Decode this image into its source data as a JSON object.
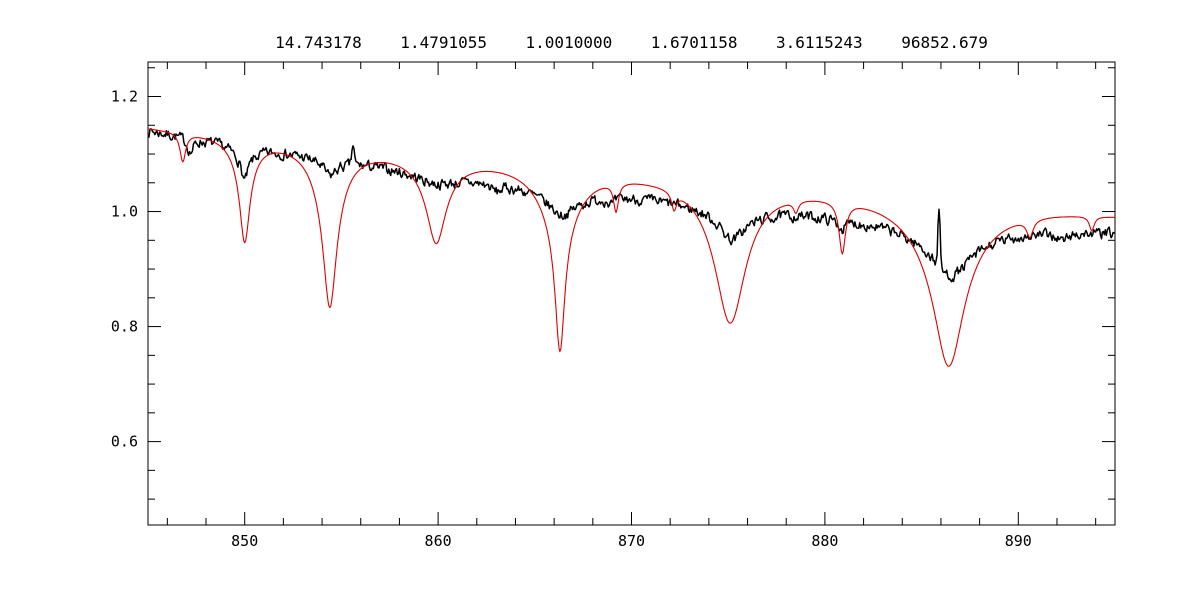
{
  "chart_data": {
    "type": "line",
    "title": "14.743178    1.4791055    1.0010000    1.6701158    3.6115243    96852.679",
    "title_values": [
      "14.743178",
      "1.4791055",
      "1.0010000",
      "1.6701158",
      "3.6115243",
      "96852.679"
    ],
    "xlabel": "",
    "ylabel": "",
    "xlim": [
      845,
      895
    ],
    "ylim": [
      0.455,
      1.26
    ],
    "x_ticks": [
      850,
      860,
      870,
      880,
      890
    ],
    "x_tick_labels": [
      "850",
      "860",
      "870",
      "880",
      "890"
    ],
    "x_minor_step": 2,
    "y_ticks": [
      0.6,
      0.8,
      1.0,
      1.2
    ],
    "y_tick_labels": [
      "0.6",
      "0.8",
      "1.0",
      "1.2"
    ],
    "y_minor_step": 0.05,
    "grid": false,
    "legend": null,
    "background": "#ffffff",
    "axis_color": "#000000",
    "sample_step": 0.05,
    "absorption_line_centers": [
      850.0,
      854.4,
      859.9,
      866.3,
      875.1,
      886.4
    ],
    "series": [
      {
        "name": "observed-spectrum",
        "color": "#000000",
        "width": 1.5,
        "seed": 7,
        "noise_amp": 0.008,
        "continuum": {
          "start_x": 845,
          "start_y": 1.142,
          "slope": -0.0052,
          "quad": 3.4e-05
        },
        "lines": [
          {
            "c": 847.2,
            "d": 0.025,
            "cw": 0.2,
            "ww": 0,
            "wf": 0
          },
          {
            "c": 850.0,
            "d": 0.06,
            "cw": 0.22,
            "ww": 0.8,
            "wf": 0.3
          },
          {
            "c": 854.4,
            "d": 0.03,
            "cw": 0.35,
            "ww": 1.0,
            "wf": 0.3
          },
          {
            "c": 859.9,
            "d": 0.02,
            "cw": 1.2,
            "ww": 2.5,
            "wf": 0.4
          },
          {
            "c": 863.0,
            "d": 0.012,
            "cw": 0.3,
            "ww": 0,
            "wf": 0
          },
          {
            "c": 866.4,
            "d": 0.048,
            "cw": 0.8,
            "ww": 2.0,
            "wf": 0.4
          },
          {
            "c": 869.0,
            "d": 0.01,
            "cw": 0.2,
            "ww": 0,
            "wf": 0
          },
          {
            "c": 875.2,
            "d": 0.06,
            "cw": 0.7,
            "ww": 2.0,
            "wf": 0.35
          },
          {
            "c": 880.9,
            "d": 0.015,
            "cw": 0.25,
            "ww": 0,
            "wf": 0
          },
          {
            "c": 886.5,
            "d": 0.095,
            "cw": 1.1,
            "ww": 3.0,
            "wf": 0.4
          },
          {
            "c": 892.3,
            "d": 0.012,
            "cw": 0.3,
            "ww": 0,
            "wf": 0
          }
        ],
        "spikes": [
          {
            "c": 855.6,
            "h": 0.035,
            "w": 0.09
          },
          {
            "c": 885.9,
            "h": 0.1,
            "w": 0.08
          }
        ]
      },
      {
        "name": "model-spectrum",
        "color": "#e00000",
        "width": 1.1,
        "seed": 1,
        "noise_amp": 0,
        "continuum": {
          "start_x": 845,
          "start_y": 1.148,
          "slope": -0.003,
          "quad": 0
        },
        "lines": [
          {
            "c": 846.8,
            "d": 0.05,
            "cw": 0.18,
            "ww": 0,
            "wf": 0
          },
          {
            "c": 850.0,
            "d": 0.18,
            "cw": 0.3,
            "ww": 0.7,
            "wf": 0.25
          },
          {
            "c": 854.4,
            "d": 0.28,
            "cw": 0.4,
            "ww": 0.9,
            "wf": 0.3
          },
          {
            "c": 859.9,
            "d": 0.15,
            "cw": 0.55,
            "ww": 1.1,
            "wf": 0.3
          },
          {
            "c": 866.3,
            "d": 0.32,
            "cw": 0.3,
            "ww": 1.2,
            "wf": 0.3
          },
          {
            "c": 869.2,
            "d": 0.05,
            "cw": 0.15,
            "ww": 0,
            "wf": 0
          },
          {
            "c": 872.2,
            "d": 0.03,
            "cw": 0.15,
            "ww": 0,
            "wf": 0
          },
          {
            "c": 875.1,
            "d": 0.245,
            "cw": 0.9,
            "ww": 1.4,
            "wf": 0.25
          },
          {
            "c": 878.5,
            "d": 0.02,
            "cw": 0.15,
            "ww": 0,
            "wf": 0
          },
          {
            "c": 880.9,
            "d": 0.09,
            "cw": 0.2,
            "ww": 0,
            "wf": 0
          },
          {
            "c": 886.4,
            "d": 0.29,
            "cw": 0.9,
            "ww": 2.0,
            "wf": 0.3
          },
          {
            "c": 890.6,
            "d": 0.03,
            "cw": 0.2,
            "ww": 0,
            "wf": 0
          },
          {
            "c": 893.8,
            "d": 0.025,
            "cw": 0.15,
            "ww": 0,
            "wf": 0
          }
        ],
        "spikes": []
      }
    ]
  }
}
